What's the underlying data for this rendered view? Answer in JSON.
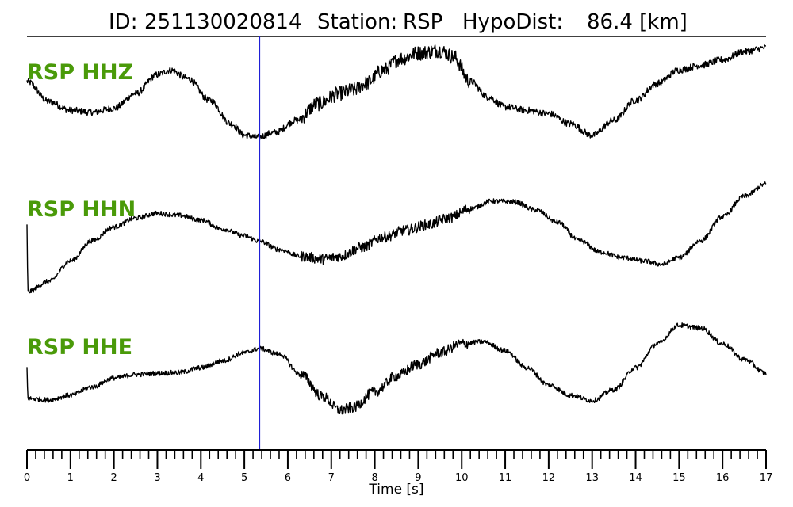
{
  "header": {
    "id_label": "ID:",
    "id_value": "251130020814",
    "station_label": "Station:",
    "station_value": "RSP",
    "hypodist_label": "HypoDist:",
    "hypodist_value": "86.4 [km]"
  },
  "colors": {
    "trace": "#000000",
    "label": "#4a9a09",
    "marker": "#1f1fd6"
  },
  "chart_data": {
    "type": "line",
    "xlabel": "Time [s]",
    "xlim": [
      0,
      17
    ],
    "x_ticks": [
      "0",
      "1",
      "2",
      "3",
      "4",
      "5",
      "6",
      "7",
      "8",
      "9",
      "10",
      "11",
      "12",
      "13",
      "14",
      "15",
      "16",
      "17"
    ],
    "minor_tick_step": 0.2,
    "grid": false,
    "pick_marker_time": 5.35,
    "series": [
      {
        "name": "RSP HHZ",
        "ylim": [
          -1.0,
          1.0
        ],
        "noise": 0.05,
        "points": [
          [
            0,
            0.38
          ],
          [
            0.5,
            0.08
          ],
          [
            1.0,
            -0.05
          ],
          [
            1.5,
            -0.08
          ],
          [
            2.0,
            -0.02
          ],
          [
            2.5,
            0.2
          ],
          [
            3.0,
            0.48
          ],
          [
            3.3,
            0.55
          ],
          [
            3.7,
            0.42
          ],
          [
            4.2,
            0.1
          ],
          [
            4.7,
            -0.25
          ],
          [
            5.0,
            -0.42
          ],
          [
            5.3,
            -0.45
          ],
          [
            5.7,
            -0.38
          ],
          [
            6.2,
            -0.2
          ],
          [
            6.7,
            0.05
          ],
          [
            7.2,
            0.2
          ],
          [
            7.5,
            0.25
          ],
          [
            7.8,
            0.35
          ],
          [
            8.2,
            0.55
          ],
          [
            8.6,
            0.72
          ],
          [
            9.0,
            0.8
          ],
          [
            9.5,
            0.84
          ],
          [
            9.8,
            0.75
          ],
          [
            10.2,
            0.38
          ],
          [
            10.6,
            0.15
          ],
          [
            11.0,
            0.0
          ],
          [
            11.5,
            -0.05
          ],
          [
            12.0,
            -0.1
          ],
          [
            12.5,
            -0.25
          ],
          [
            13.0,
            -0.42
          ],
          [
            13.5,
            -0.2
          ],
          [
            14.0,
            0.1
          ],
          [
            14.5,
            0.35
          ],
          [
            15.0,
            0.55
          ],
          [
            15.5,
            0.62
          ],
          [
            16.0,
            0.7
          ],
          [
            16.5,
            0.82
          ],
          [
            17.0,
            0.88
          ]
        ]
      },
      {
        "name": "RSP HHN",
        "ylim": [
          -1.0,
          1.0
        ],
        "noise": 0.035,
        "points": [
          [
            0,
            0.3
          ],
          [
            0.02,
            -0.7
          ],
          [
            0.5,
            -0.55
          ],
          [
            1.0,
            -0.25
          ],
          [
            1.5,
            0.05
          ],
          [
            2.0,
            0.25
          ],
          [
            2.5,
            0.38
          ],
          [
            3.0,
            0.45
          ],
          [
            3.5,
            0.42
          ],
          [
            4.0,
            0.35
          ],
          [
            4.5,
            0.22
          ],
          [
            5.0,
            0.12
          ],
          [
            5.35,
            0.04
          ],
          [
            5.8,
            -0.08
          ],
          [
            6.3,
            -0.18
          ],
          [
            6.8,
            -0.22
          ],
          [
            7.2,
            -0.18
          ],
          [
            7.7,
            -0.05
          ],
          [
            8.2,
            0.1
          ],
          [
            8.7,
            0.2
          ],
          [
            9.2,
            0.28
          ],
          [
            9.7,
            0.38
          ],
          [
            10.2,
            0.52
          ],
          [
            10.7,
            0.63
          ],
          [
            11.2,
            0.62
          ],
          [
            11.7,
            0.5
          ],
          [
            12.2,
            0.32
          ],
          [
            12.7,
            0.05
          ],
          [
            13.2,
            -0.12
          ],
          [
            13.7,
            -0.2
          ],
          [
            14.2,
            -0.25
          ],
          [
            14.6,
            -0.3
          ],
          [
            15.0,
            -0.2
          ],
          [
            15.5,
            0.05
          ],
          [
            16.0,
            0.4
          ],
          [
            16.5,
            0.7
          ],
          [
            17.0,
            0.88
          ]
        ]
      },
      {
        "name": "RSP HHE",
        "ylim": [
          -1.0,
          1.0
        ],
        "noise": 0.035,
        "points": [
          [
            0,
            0.2
          ],
          [
            0.02,
            -0.25
          ],
          [
            0.5,
            -0.27
          ],
          [
            1.0,
            -0.2
          ],
          [
            1.5,
            -0.08
          ],
          [
            2.0,
            0.05
          ],
          [
            2.5,
            0.1
          ],
          [
            3.0,
            0.12
          ],
          [
            3.5,
            0.13
          ],
          [
            4.0,
            0.2
          ],
          [
            4.5,
            0.3
          ],
          [
            5.0,
            0.42
          ],
          [
            5.35,
            0.48
          ],
          [
            5.8,
            0.4
          ],
          [
            6.3,
            0.1
          ],
          [
            6.8,
            -0.22
          ],
          [
            7.2,
            -0.42
          ],
          [
            7.5,
            -0.38
          ],
          [
            8.0,
            -0.15
          ],
          [
            8.5,
            0.08
          ],
          [
            9.0,
            0.25
          ],
          [
            9.5,
            0.42
          ],
          [
            10.0,
            0.55
          ],
          [
            10.5,
            0.58
          ],
          [
            11.0,
            0.45
          ],
          [
            11.5,
            0.2
          ],
          [
            12.0,
            -0.05
          ],
          [
            12.5,
            -0.2
          ],
          [
            13.0,
            -0.28
          ],
          [
            13.5,
            -0.12
          ],
          [
            14.0,
            0.2
          ],
          [
            14.5,
            0.55
          ],
          [
            15.0,
            0.82
          ],
          [
            15.5,
            0.78
          ],
          [
            16.0,
            0.55
          ],
          [
            16.5,
            0.32
          ],
          [
            17.0,
            0.12
          ]
        ]
      }
    ]
  }
}
